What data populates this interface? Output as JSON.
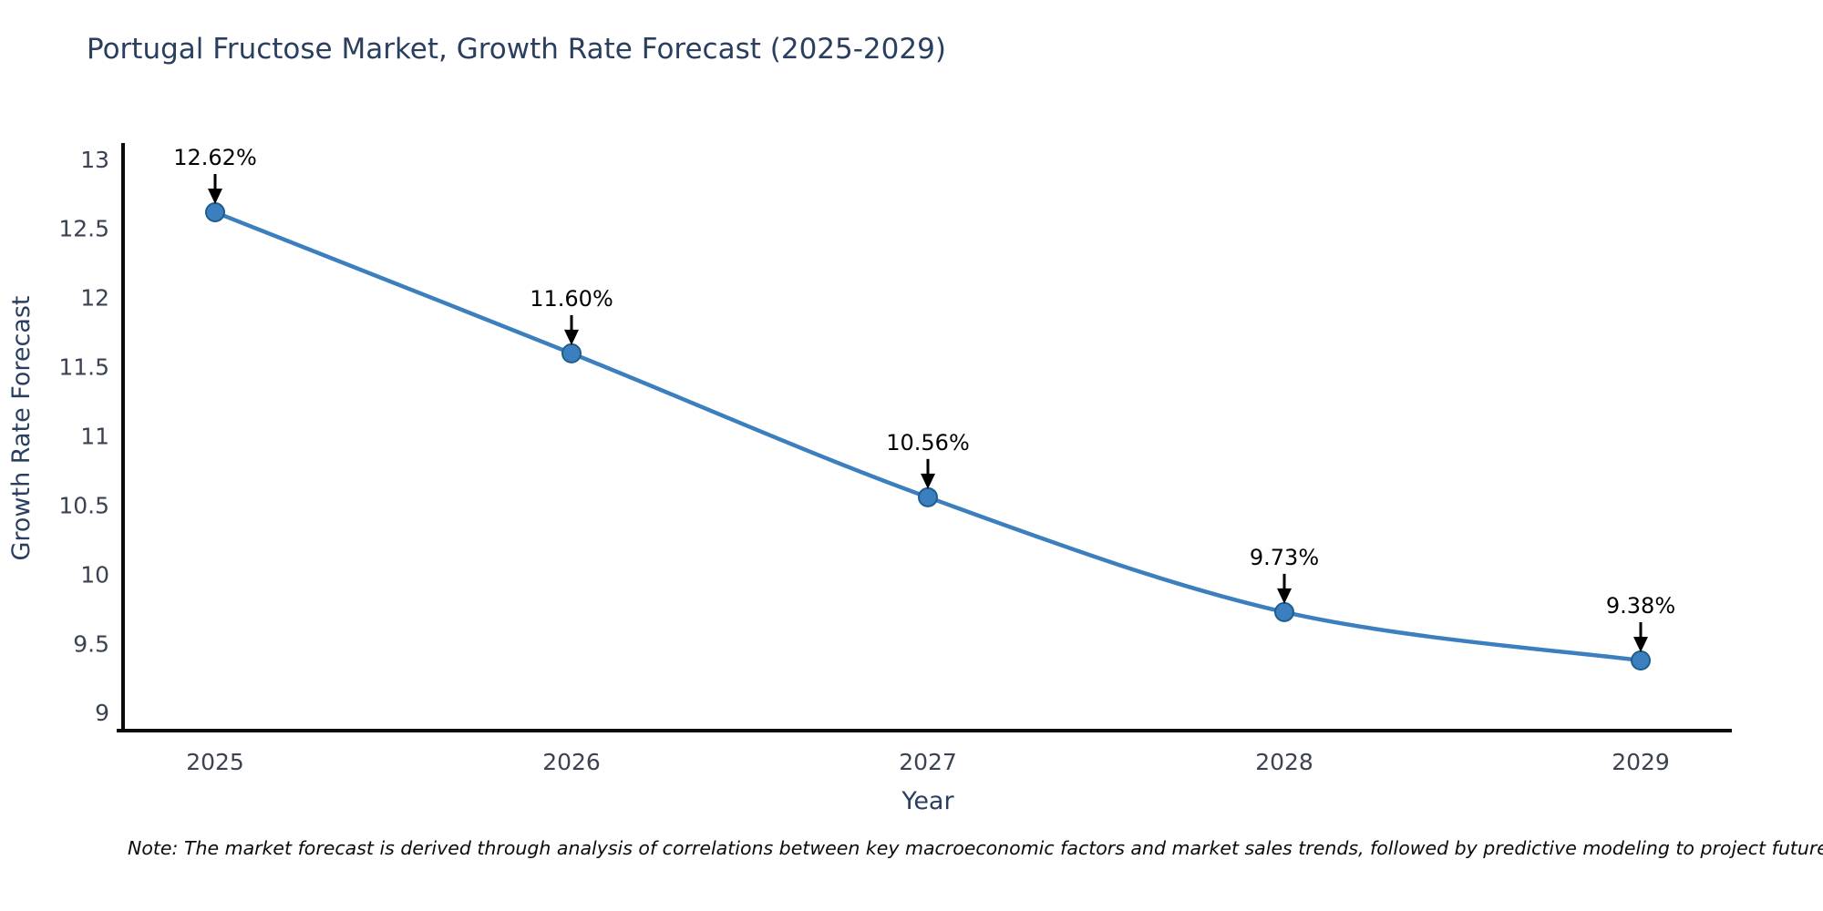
{
  "title": {
    "text": "Portugal Fructose Market, Growth Rate Forecast (2025-2029)"
  },
  "note": {
    "text": "Note: The market forecast is derived through analysis of correlations between key macroeconomic factors and market sales trends, followed by predictive modeling to project future sal"
  },
  "chart_data": {
    "type": "line",
    "title": "Portugal Fructose Market, Growth Rate Forecast (2025-2029)",
    "xlabel": "Year",
    "ylabel": "Growth Rate Forecast",
    "x": [
      2025,
      2026,
      2027,
      2028,
      2029
    ],
    "series": [
      {
        "name": "Growth Rate Forecast",
        "values": [
          12.62,
          11.6,
          10.56,
          9.73,
          9.38
        ]
      }
    ],
    "point_labels": [
      "12.62%",
      "11.60%",
      "10.56%",
      "9.73%",
      "9.38%"
    ],
    "x_ticks": [
      2025,
      2026,
      2027,
      2028,
      2029
    ],
    "y_ticks": [
      9,
      9.5,
      10,
      10.5,
      11,
      11.5,
      12,
      12.5,
      13
    ],
    "xlim": [
      2024.74,
      2029.26
    ],
    "ylim": [
      8.87,
      13.11
    ],
    "grid": false,
    "legend_position": "none",
    "smooth": true,
    "marker_size": 10,
    "colors": {
      "line": "#3c7fbf",
      "marker_fill": "#3c7fbf",
      "marker_edge": "#1f5d8f",
      "annotation_text": "#000000",
      "annotation_arrow": "#000000",
      "axis": "#0a0a0a",
      "tick_label": "#3b4252",
      "axis_title": "#2a3f5f",
      "title": "#2a3f5f",
      "background": "#ffffff"
    }
  }
}
